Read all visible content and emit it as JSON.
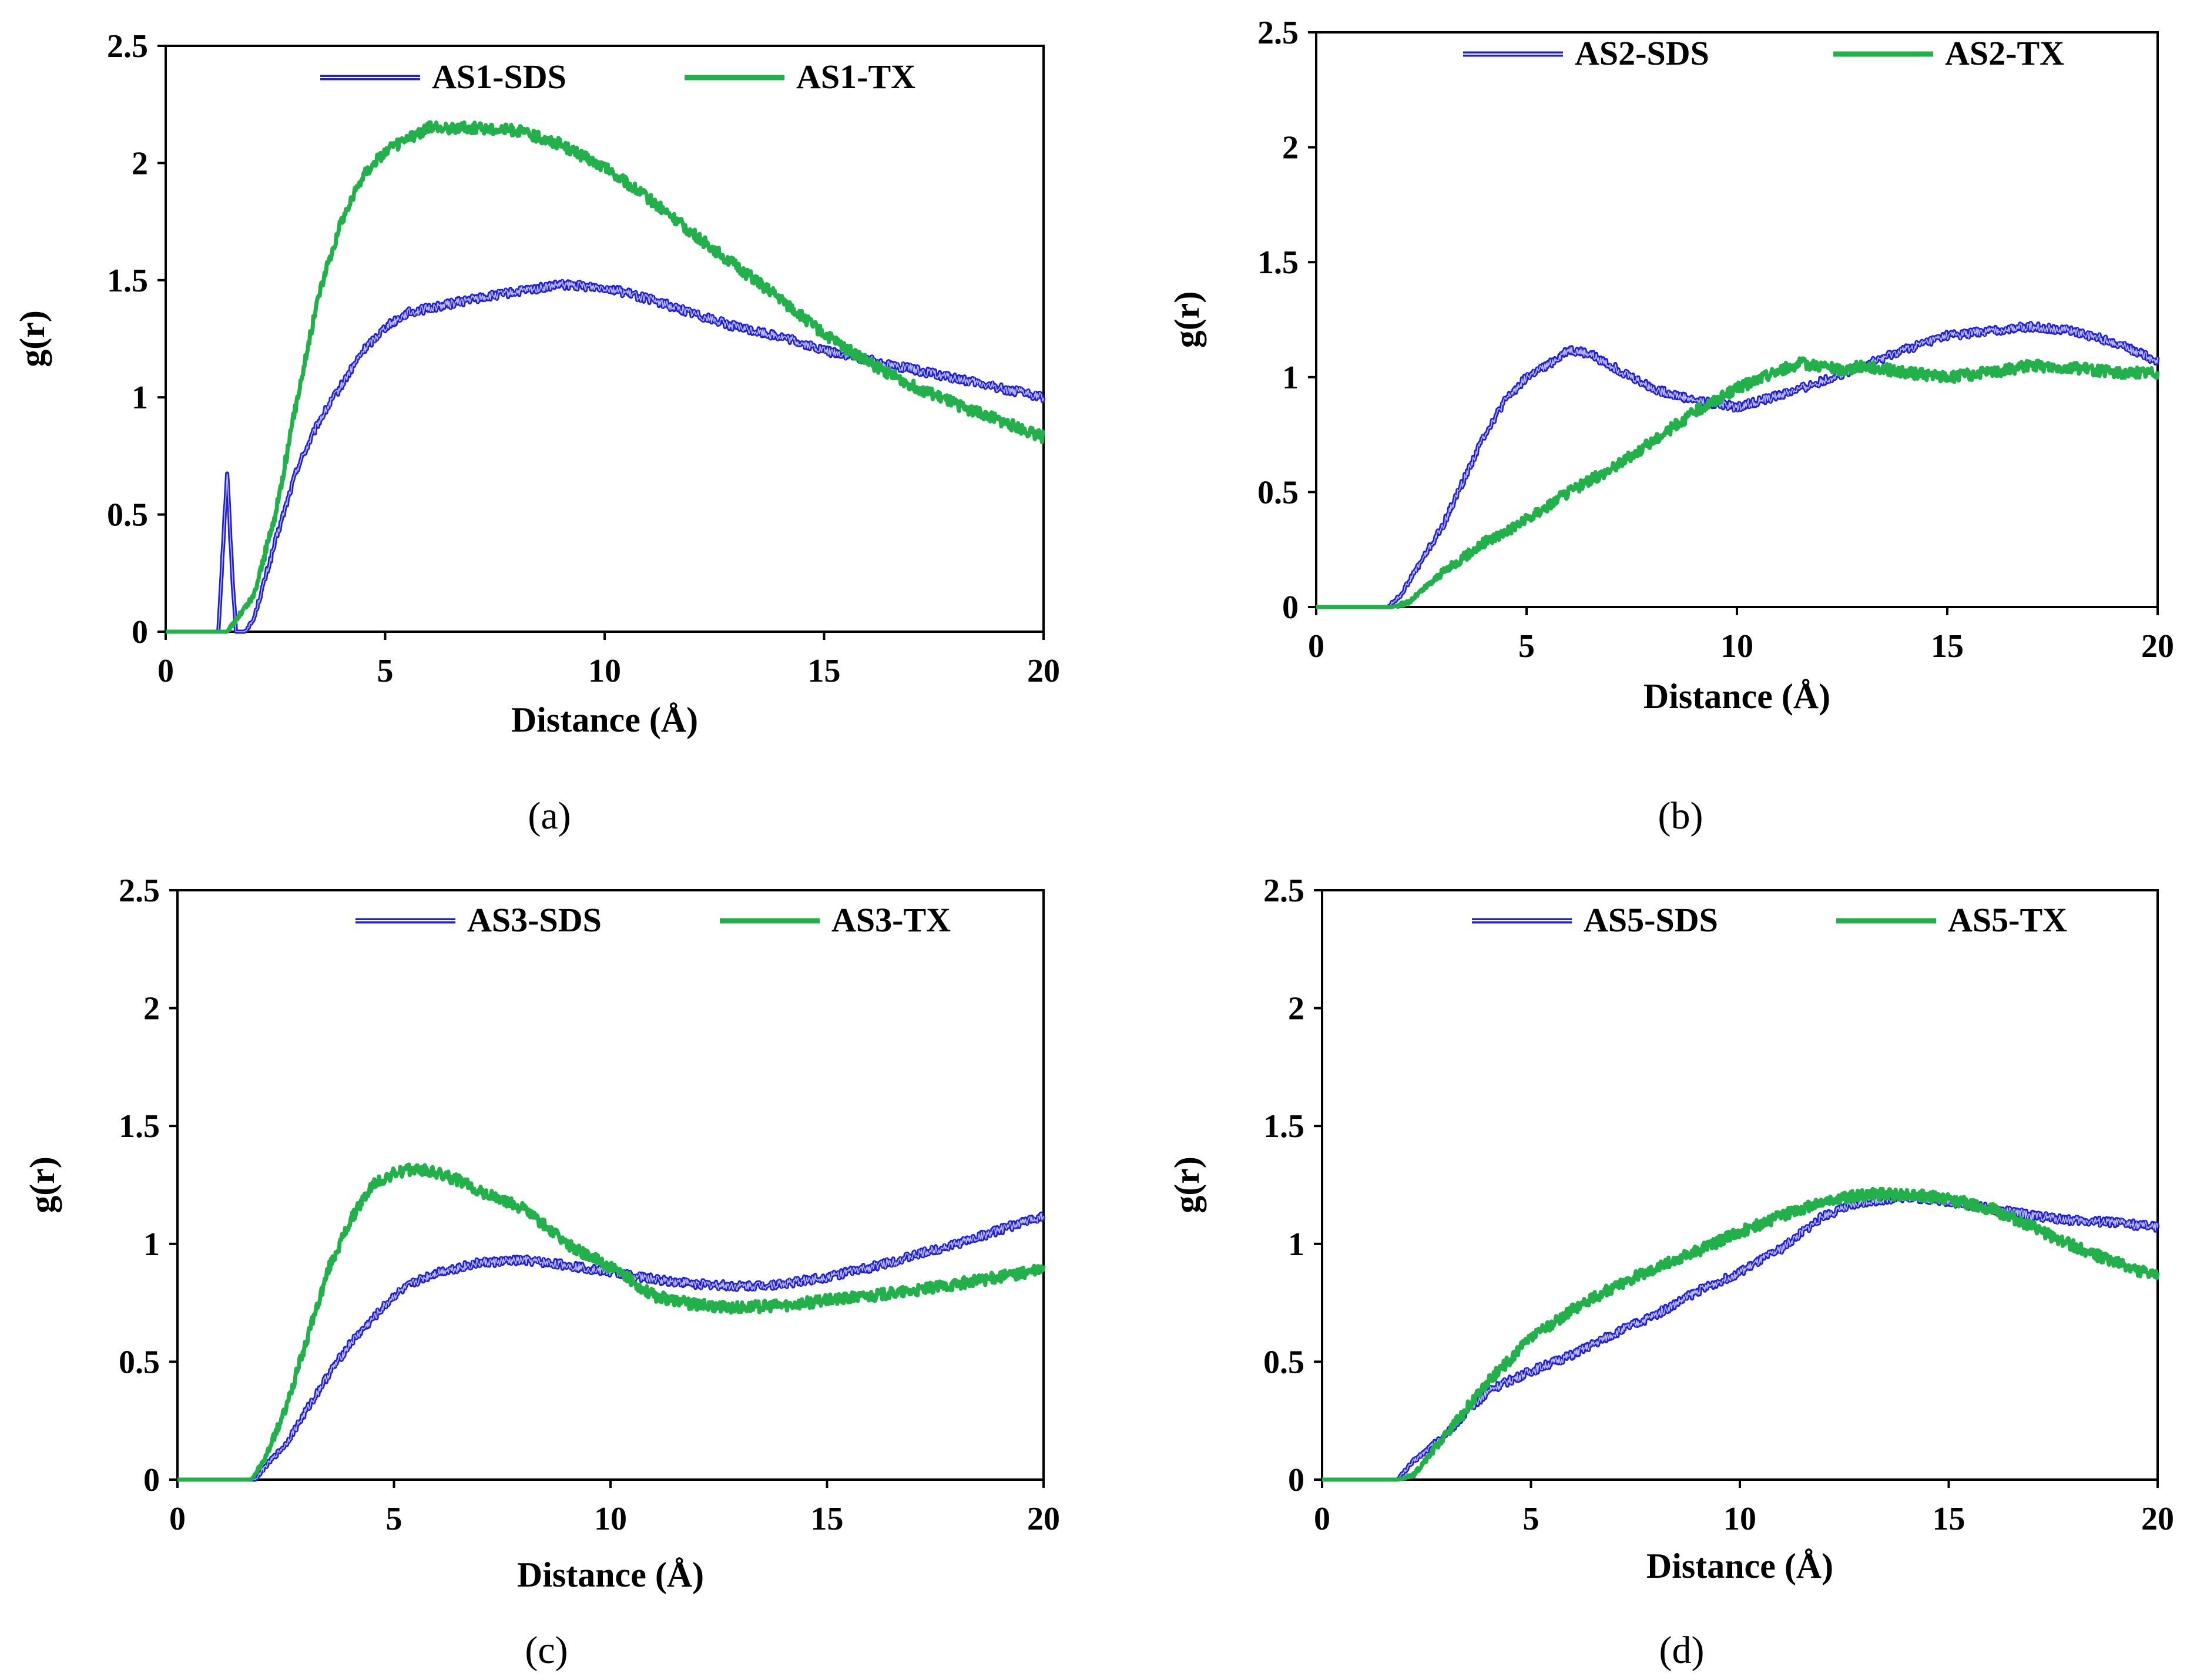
{
  "colors": {
    "sds": "#1f1fd6",
    "tx": "#22b04a",
    "axis": "#000000"
  },
  "chart_data": [
    {
      "id": "a",
      "caption": "(a)",
      "type": "line",
      "xlabel": "Distance (Å)",
      "ylabel": "g(r)",
      "xlim": [
        0,
        20
      ],
      "ylim": [
        0,
        2.5
      ],
      "xticks": [
        "0",
        "5",
        "10",
        "15",
        "20"
      ],
      "yticks": [
        "0",
        "0.5",
        "1",
        "1.5",
        "2",
        "2.5"
      ],
      "series": [
        {
          "name": "AS1-SDS",
          "color": "#1f1fd6",
          "x": [
            0,
            1.2,
            1.3,
            1.4,
            1.5,
            1.6,
            1.8,
            2.0,
            2.3,
            2.6,
            3.0,
            3.5,
            4.0,
            4.5,
            5.0,
            5.5,
            6,
            7,
            8,
            9,
            10,
            11,
            12,
            13,
            14,
            15,
            16,
            17,
            18,
            19,
            20
          ],
          "y": [
            0,
            0,
            0.35,
            0.68,
            0.3,
            0,
            0,
            0.05,
            0.25,
            0.45,
            0.7,
            0.9,
            1.05,
            1.2,
            1.3,
            1.36,
            1.38,
            1.42,
            1.45,
            1.48,
            1.47,
            1.42,
            1.36,
            1.3,
            1.26,
            1.2,
            1.16,
            1.12,
            1.08,
            1.04,
            1.0
          ]
        },
        {
          "name": "AS1-TX",
          "color": "#22b04a",
          "x": [
            0,
            1.4,
            1.6,
            1.8,
            2.0,
            2.5,
            3.0,
            3.5,
            4.0,
            4.5,
            5.0,
            5.5,
            6,
            7,
            8,
            9,
            10,
            11,
            12,
            13,
            14,
            15,
            16,
            17,
            18,
            19,
            20
          ],
          "y": [
            0,
            0,
            0.05,
            0.1,
            0.15,
            0.5,
            1.0,
            1.45,
            1.75,
            1.95,
            2.05,
            2.1,
            2.15,
            2.15,
            2.14,
            2.08,
            1.98,
            1.85,
            1.7,
            1.56,
            1.42,
            1.27,
            1.15,
            1.05,
            0.97,
            0.9,
            0.83
          ]
        }
      ]
    },
    {
      "id": "b",
      "caption": "(b)",
      "type": "line",
      "xlabel": "Distance (Å)",
      "ylabel": "g(r)",
      "xlim": [
        0,
        20
      ],
      "ylim": [
        0,
        2.5
      ],
      "xticks": [
        "0",
        "5",
        "10",
        "15",
        "20"
      ],
      "yticks": [
        "0",
        "0.5",
        "1",
        "1.5",
        "2",
        "2.5"
      ],
      "series": [
        {
          "name": "AS2-SDS",
          "color": "#1f1fd6",
          "x": [
            0,
            1.7,
            2,
            2.5,
            3,
            3.5,
            4,
            4.5,
            5,
            5.5,
            6,
            6.5,
            7,
            8,
            9,
            10,
            11,
            12,
            13,
            14,
            15,
            16,
            17,
            18,
            19,
            20
          ],
          "y": [
            0,
            0,
            0.05,
            0.2,
            0.35,
            0.55,
            0.75,
            0.9,
            1.0,
            1.05,
            1.12,
            1.1,
            1.05,
            0.95,
            0.9,
            0.87,
            0.92,
            0.98,
            1.05,
            1.12,
            1.18,
            1.2,
            1.22,
            1.2,
            1.15,
            1.07
          ]
        },
        {
          "name": "AS2-TX",
          "color": "#22b04a",
          "x": [
            0,
            1.8,
            2.2,
            3,
            4,
            5,
            6,
            7,
            8,
            9,
            10,
            11,
            11.5,
            12,
            12.5,
            13,
            14,
            15,
            16,
            17,
            18,
            19,
            20
          ],
          "y": [
            0,
            0,
            0.02,
            0.15,
            0.28,
            0.38,
            0.5,
            0.6,
            0.72,
            0.85,
            0.95,
            1.03,
            1.06,
            1.05,
            1.03,
            1.05,
            1.02,
            1.0,
            1.02,
            1.05,
            1.04,
            1.02,
            1.02
          ]
        }
      ]
    },
    {
      "id": "c",
      "caption": "(c)",
      "type": "line",
      "xlabel": "Distance (Å)",
      "ylabel": "g(r)",
      "xlim": [
        0,
        20
      ],
      "ylim": [
        0,
        2.5
      ],
      "xticks": [
        "0",
        "5",
        "10",
        "15",
        "20"
      ],
      "yticks": [
        "0",
        "0.5",
        "1",
        "1.5",
        "2",
        "2.5"
      ],
      "series": [
        {
          "name": "AS3-SDS",
          "color": "#1f1fd6",
          "x": [
            0,
            1.8,
            2,
            2.5,
            3,
            3.5,
            4,
            4.5,
            5,
            5.5,
            6,
            7,
            8,
            9,
            10,
            11,
            12,
            13,
            14,
            15,
            16,
            17,
            18,
            19,
            20
          ],
          "y": [
            0,
            0,
            0.05,
            0.15,
            0.3,
            0.45,
            0.58,
            0.68,
            0.78,
            0.84,
            0.88,
            0.92,
            0.93,
            0.91,
            0.88,
            0.85,
            0.83,
            0.82,
            0.83,
            0.86,
            0.9,
            0.95,
            1.0,
            1.06,
            1.12
          ]
        },
        {
          "name": "AS3-TX",
          "color": "#22b04a",
          "x": [
            0,
            1.7,
            2,
            2.5,
            3,
            3.5,
            4,
            4.5,
            5,
            5.5,
            6,
            6.5,
            7,
            8,
            9,
            10,
            11,
            12,
            13,
            14,
            15,
            16,
            17,
            18,
            19,
            20
          ],
          "y": [
            0,
            0,
            0.08,
            0.3,
            0.6,
            0.9,
            1.1,
            1.25,
            1.3,
            1.32,
            1.3,
            1.27,
            1.22,
            1.15,
            1.0,
            0.9,
            0.78,
            0.74,
            0.73,
            0.74,
            0.76,
            0.78,
            0.8,
            0.83,
            0.86,
            0.89
          ]
        }
      ]
    },
    {
      "id": "d",
      "caption": "(d)",
      "type": "line",
      "xlabel": "Distance (Å)",
      "ylabel": "g(r)",
      "xlim": [
        0,
        20
      ],
      "ylim": [
        0,
        2.5
      ],
      "xticks": [
        "0",
        "5",
        "10",
        "15",
        "20"
      ],
      "yticks": [
        "0",
        "0.5",
        "1",
        "1.5",
        "2",
        "2.5"
      ],
      "series": [
        {
          "name": "AS5-SDS",
          "color": "#1f1fd6",
          "x": [
            0,
            1.8,
            2.2,
            3,
            4,
            5,
            6,
            7,
            8,
            9,
            10,
            11,
            12,
            13,
            14,
            15,
            16,
            17,
            18,
            19,
            20
          ],
          "y": [
            0,
            0,
            0.08,
            0.2,
            0.38,
            0.46,
            0.53,
            0.62,
            0.7,
            0.8,
            0.88,
            0.98,
            1.12,
            1.18,
            1.2,
            1.18,
            1.15,
            1.12,
            1.1,
            1.09,
            1.07
          ]
        },
        {
          "name": "AS5-TX",
          "color": "#22b04a",
          "x": [
            0,
            1.8,
            2.2,
            3,
            4,
            5,
            6,
            7,
            8,
            9,
            10,
            11,
            12,
            13,
            14,
            15,
            16,
            17,
            18,
            19,
            20
          ],
          "y": [
            0,
            0,
            0.02,
            0.2,
            0.42,
            0.6,
            0.72,
            0.82,
            0.9,
            0.97,
            1.05,
            1.12,
            1.18,
            1.21,
            1.21,
            1.19,
            1.15,
            1.07,
            0.99,
            0.92,
            0.86
          ]
        }
      ]
    }
  ]
}
